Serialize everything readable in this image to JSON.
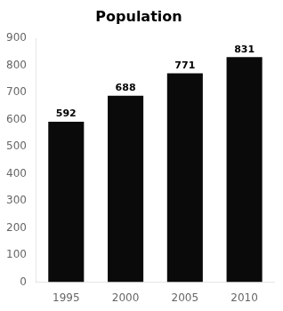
{
  "chart_data": {
    "type": "bar",
    "title": "Population",
    "categories": [
      "1995",
      "2000",
      "2005",
      "2010"
    ],
    "values": [
      592,
      688,
      771,
      831
    ],
    "color": "#0a0a0a",
    "ylim": [
      0,
      900
    ],
    "yticks": [
      0,
      100,
      200,
      300,
      400,
      500,
      600,
      700,
      800,
      900
    ],
    "grid": false,
    "data_labels": true
  }
}
